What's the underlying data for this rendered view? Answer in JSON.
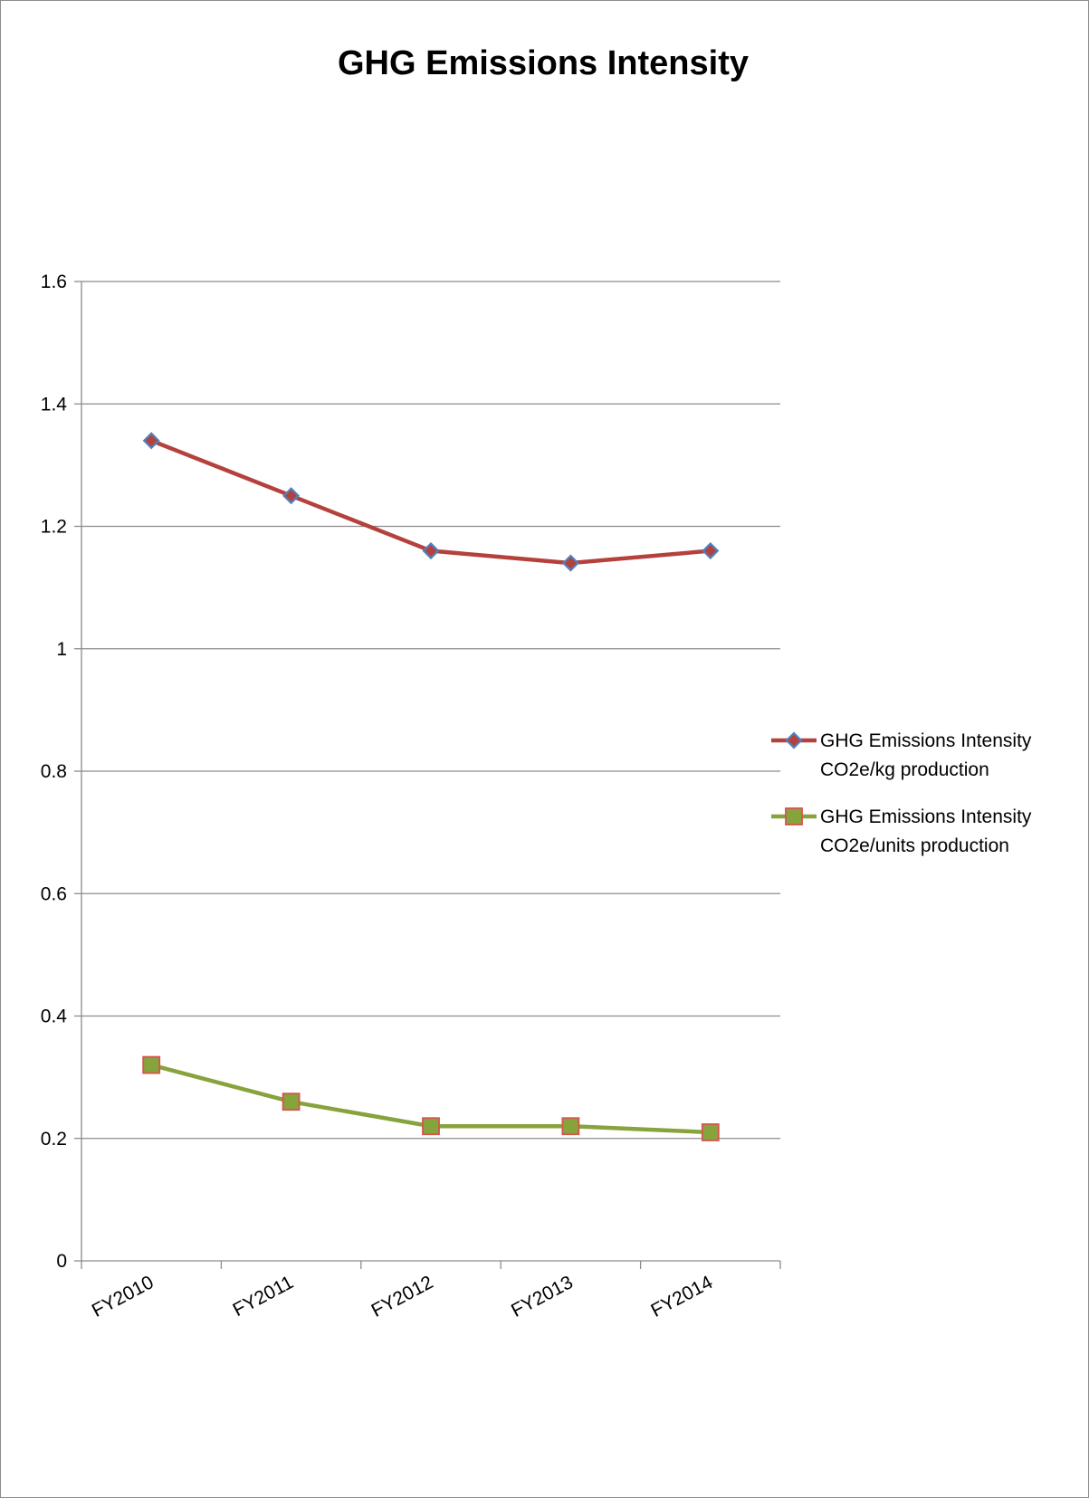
{
  "chart_data": {
    "type": "line",
    "title": "GHG Emissions Intensity",
    "xlabel": "",
    "ylabel": "",
    "categories": [
      "FY2010",
      "FY2011",
      "FY2012",
      "FY2013",
      "FY2014"
    ],
    "ylim": [
      0,
      1.6
    ],
    "yticks": [
      0,
      0.2,
      0.4,
      0.6,
      0.8,
      1,
      1.2,
      1.4,
      1.6
    ],
    "grid": true,
    "legend_position": "right",
    "series": [
      {
        "name": "GHG Emissions Intensity CO2e/kg production",
        "legend_lines": [
          "GHG Emissions Intensity",
          "CO2e/kg production"
        ],
        "values": [
          1.34,
          1.25,
          1.16,
          1.14,
          1.16
        ],
        "line_color": "#b5413d",
        "marker": "diamond",
        "marker_fill": "#b5413d",
        "marker_stroke": "#4f81bd"
      },
      {
        "name": "GHG Emissions Intensity CO2e/units production",
        "legend_lines": [
          "GHG Emissions Intensity",
          "CO2e/units production"
        ],
        "values": [
          0.32,
          0.26,
          0.22,
          0.22,
          0.21
        ],
        "line_color": "#86a33c",
        "marker": "square",
        "marker_fill": "#86a33c",
        "marker_stroke": "#d9534f"
      }
    ]
  }
}
